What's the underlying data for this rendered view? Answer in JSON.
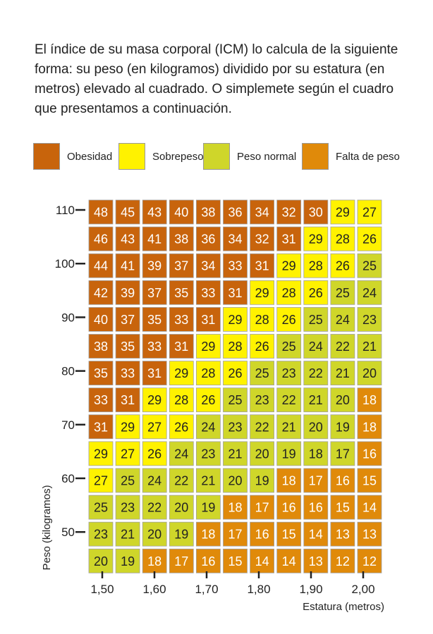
{
  "intro_text": "El índice de su masa corporal (ICM) lo calcula de la siguiente forma: su peso (en kilogramos) dividido por su estatura (en metros) elevado al cuadrado. O simplemete según el cuadro que presentamos a continuación.",
  "legend": [
    {
      "label": "Obesidad",
      "color": "#c8640c"
    },
    {
      "label": "Sobrepeso",
      "color": "#fff200"
    },
    {
      "label": "Peso normal",
      "color": "#cfd62a"
    },
    {
      "label": "Falta de peso",
      "color": "#e08a0a"
    }
  ],
  "chart_data": {
    "type": "heatmap",
    "xlabel": "Estatura (metros)",
    "ylabel": "Peso (kilogramos)",
    "x_tick_labels": [
      "1,50",
      "1,60",
      "1,70",
      "1,80",
      "1,90",
      "2,00"
    ],
    "y_tick_labels": [
      "110",
      "100",
      "90",
      "80",
      "70",
      "60",
      "50"
    ],
    "cell_text_color": "#ffffff",
    "cell_text_color_light": "#222222",
    "rows": [
      {
        "bmi": [
          48,
          45,
          43,
          40,
          38,
          36,
          34,
          32,
          30,
          29,
          27
        ],
        "cat": [
          "O",
          "O",
          "O",
          "O",
          "O",
          "O",
          "O",
          "O",
          "O",
          "S",
          "S"
        ]
      },
      {
        "bmi": [
          46,
          43,
          41,
          38,
          36,
          34,
          32,
          31,
          29,
          28,
          26
        ],
        "cat": [
          "O",
          "O",
          "O",
          "O",
          "O",
          "O",
          "O",
          "O",
          "S",
          "S",
          "S"
        ]
      },
      {
        "bmi": [
          44,
          41,
          39,
          37,
          34,
          33,
          31,
          29,
          28,
          26,
          25
        ],
        "cat": [
          "O",
          "O",
          "O",
          "O",
          "O",
          "O",
          "O",
          "S",
          "S",
          "S",
          "N"
        ]
      },
      {
        "bmi": [
          42,
          39,
          37,
          35,
          33,
          31,
          29,
          28,
          26,
          25,
          24
        ],
        "cat": [
          "O",
          "O",
          "O",
          "O",
          "O",
          "O",
          "S",
          "S",
          "S",
          "N",
          "N"
        ]
      },
      {
        "bmi": [
          40,
          37,
          35,
          33,
          31,
          29,
          28,
          26,
          25,
          24,
          23
        ],
        "cat": [
          "O",
          "O",
          "O",
          "O",
          "O",
          "S",
          "S",
          "S",
          "N",
          "N",
          "N"
        ]
      },
      {
        "bmi": [
          38,
          35,
          33,
          31,
          29,
          28,
          26,
          25,
          24,
          22,
          21
        ],
        "cat": [
          "O",
          "O",
          "O",
          "O",
          "S",
          "S",
          "S",
          "N",
          "N",
          "N",
          "N"
        ]
      },
      {
        "bmi": [
          35,
          33,
          31,
          29,
          28,
          26,
          25,
          23,
          22,
          21,
          20
        ],
        "cat": [
          "O",
          "O",
          "O",
          "S",
          "S",
          "S",
          "N",
          "N",
          "N",
          "N",
          "N"
        ]
      },
      {
        "bmi": [
          33,
          31,
          29,
          28,
          26,
          25,
          23,
          22,
          21,
          20,
          18
        ],
        "cat": [
          "O",
          "O",
          "S",
          "S",
          "S",
          "N",
          "N",
          "N",
          "N",
          "N",
          "F"
        ]
      },
      {
        "bmi": [
          31,
          29,
          27,
          26,
          24,
          23,
          22,
          21,
          20,
          19,
          18
        ],
        "cat": [
          "O",
          "S",
          "S",
          "S",
          "N",
          "N",
          "N",
          "N",
          "N",
          "N",
          "F"
        ]
      },
      {
        "bmi": [
          29,
          27,
          26,
          24,
          23,
          21,
          20,
          19,
          18,
          17,
          16
        ],
        "cat": [
          "S",
          "S",
          "S",
          "N",
          "N",
          "N",
          "N",
          "N",
          "N",
          "N",
          "F"
        ]
      },
      {
        "bmi": [
          27,
          25,
          24,
          22,
          21,
          20,
          19,
          18,
          17,
          16,
          15
        ],
        "cat": [
          "S",
          "N",
          "N",
          "N",
          "N",
          "N",
          "N",
          "F",
          "F",
          "F",
          "F"
        ]
      },
      {
        "bmi": [
          25,
          23,
          22,
          20,
          19,
          18,
          17,
          16,
          16,
          15,
          14
        ],
        "cat": [
          "N",
          "N",
          "N",
          "N",
          "N",
          "F",
          "F",
          "F",
          "F",
          "F",
          "F"
        ]
      },
      {
        "bmi": [
          23,
          21,
          20,
          19,
          18,
          17,
          16,
          15,
          14,
          13,
          13
        ],
        "cat": [
          "N",
          "N",
          "N",
          "N",
          "F",
          "F",
          "F",
          "F",
          "F",
          "F",
          "F"
        ]
      },
      {
        "bmi": [
          20,
          19,
          18,
          17,
          16,
          15,
          14,
          14,
          13,
          12,
          12
        ],
        "cat": [
          "N",
          "N",
          "F",
          "F",
          "F",
          "F",
          "F",
          "F",
          "F",
          "F",
          "F"
        ]
      }
    ],
    "category_colors": {
      "O": "#c8640c",
      "S": "#fff200",
      "N": "#cfd62a",
      "F": "#e08a0a"
    }
  }
}
